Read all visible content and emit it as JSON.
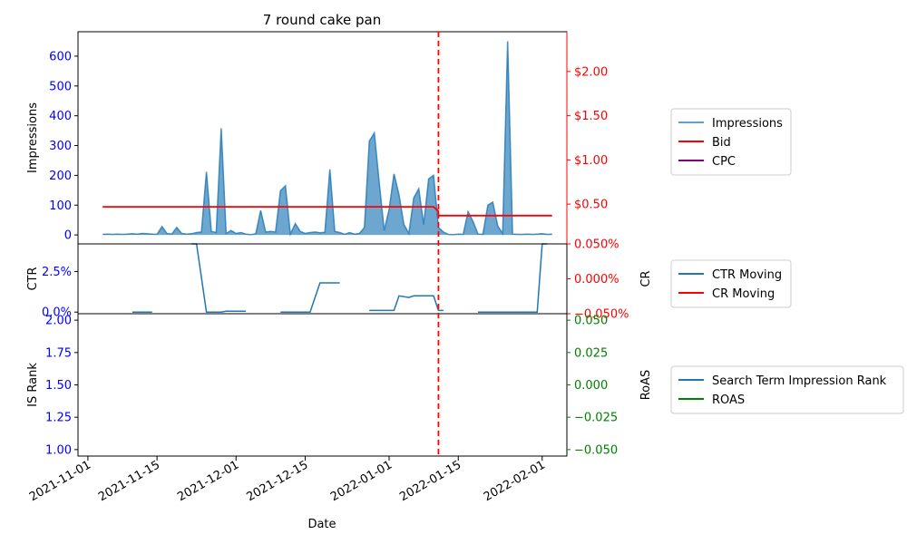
{
  "title": "7 round cake pan",
  "xlabel": "Date",
  "x_tick_labels": [
    "2021-11-01",
    "2021-11-15",
    "2021-12-01",
    "2021-12-15",
    "2022-01-01",
    "2022-01-15",
    "2022-02-01"
  ],
  "vline_date": "2022-01-11",
  "colors": {
    "impressions": "#1f77b4",
    "bid": "#ff0000",
    "cpc": "#800080",
    "roas": "#008000",
    "left_ticks": "#0000ff",
    "vline": "#ff0000"
  },
  "chart_data": [
    {
      "type": "area",
      "panel": "top",
      "ylabel": "Impressions",
      "y2label": "",
      "ylim": [
        -30,
        682
      ],
      "y2lim": [
        0.05,
        2.45
      ],
      "y_ticks": [
        0,
        100,
        200,
        300,
        400,
        500,
        600
      ],
      "y2_ticks": [
        0.5,
        1.0,
        1.5,
        2.0
      ],
      "y2_tick_labels": [
        "$0.50",
        "$1.00",
        "$1.50",
        "$2.00"
      ],
      "legend": [
        "Impressions",
        "Bid",
        "CPC"
      ],
      "series": [
        {
          "name": "Impressions",
          "points": [
            [
              "2021-11-04",
              2
            ],
            [
              "2021-11-05",
              3
            ],
            [
              "2021-11-06",
              2
            ],
            [
              "2021-11-07",
              3
            ],
            [
              "2021-11-08",
              2
            ],
            [
              "2021-11-09",
              3
            ],
            [
              "2021-11-10",
              4
            ],
            [
              "2021-11-11",
              3
            ],
            [
              "2021-11-12",
              5
            ],
            [
              "2021-11-13",
              4
            ],
            [
              "2021-11-14",
              3
            ],
            [
              "2021-11-15",
              2
            ],
            [
              "2021-11-16",
              28
            ],
            [
              "2021-11-17",
              5
            ],
            [
              "2021-11-18",
              3
            ],
            [
              "2021-11-19",
              25
            ],
            [
              "2021-11-20",
              5
            ],
            [
              "2021-11-21",
              3
            ],
            [
              "2021-11-22",
              4
            ],
            [
              "2021-11-23",
              8
            ],
            [
              "2021-11-24",
              10
            ],
            [
              "2021-11-25",
              212
            ],
            [
              "2021-11-26",
              12
            ],
            [
              "2021-11-27",
              8
            ],
            [
              "2021-11-28",
              358
            ],
            [
              "2021-11-29",
              5
            ],
            [
              "2021-11-30",
              15
            ],
            [
              "2021-12-01",
              5
            ],
            [
              "2021-12-02",
              8
            ],
            [
              "2021-12-03",
              3
            ],
            [
              "2021-12-04",
              1
            ],
            [
              "2021-12-05",
              4
            ],
            [
              "2021-12-06",
              82
            ],
            [
              "2021-12-07",
              10
            ],
            [
              "2021-12-08",
              12
            ],
            [
              "2021-12-09",
              10
            ],
            [
              "2021-12-10",
              148
            ],
            [
              "2021-12-11",
              165
            ],
            [
              "2021-12-12",
              3
            ],
            [
              "2021-12-13",
              38
            ],
            [
              "2021-12-14",
              12
            ],
            [
              "2021-12-15",
              5
            ],
            [
              "2021-12-16",
              8
            ],
            [
              "2021-12-17",
              10
            ],
            [
              "2021-12-18",
              7
            ],
            [
              "2021-12-19",
              9
            ],
            [
              "2021-12-20",
              220
            ],
            [
              "2021-12-21",
              12
            ],
            [
              "2021-12-22",
              8
            ],
            [
              "2021-12-23",
              2
            ],
            [
              "2021-12-24",
              8
            ],
            [
              "2021-12-25",
              3
            ],
            [
              "2021-12-26",
              5
            ],
            [
              "2021-12-27",
              25
            ],
            [
              "2021-12-28",
              315
            ],
            [
              "2021-12-29",
              342
            ],
            [
              "2021-12-30",
              175
            ],
            [
              "2021-12-31",
              15
            ],
            [
              "2022-01-01",
              85
            ],
            [
              "2022-01-02",
              205
            ],
            [
              "2022-01-03",
              135
            ],
            [
              "2022-01-04",
              35
            ],
            [
              "2022-01-05",
              5
            ],
            [
              "2022-01-06",
              125
            ],
            [
              "2022-01-07",
              155
            ],
            [
              "2022-01-08",
              35
            ],
            [
              "2022-01-09",
              188
            ],
            [
              "2022-01-10",
              200
            ],
            [
              "2022-01-11",
              25
            ],
            [
              "2022-01-12",
              10
            ],
            [
              "2022-01-13",
              2
            ],
            [
              "2022-01-14",
              1
            ],
            [
              "2022-01-15",
              3
            ],
            [
              "2022-01-16",
              2
            ],
            [
              "2022-01-17",
              78
            ],
            [
              "2022-01-18",
              45
            ],
            [
              "2022-01-19",
              3
            ],
            [
              "2022-01-20",
              2
            ],
            [
              "2022-01-21",
              100
            ],
            [
              "2022-01-22",
              110
            ],
            [
              "2022-01-23",
              30
            ],
            [
              "2022-01-24",
              5
            ],
            [
              "2022-01-25",
              650
            ],
            [
              "2022-01-26",
              3
            ],
            [
              "2022-01-27",
              2
            ],
            [
              "2022-01-28",
              2
            ],
            [
              "2022-01-29",
              3
            ],
            [
              "2022-01-30",
              2
            ],
            [
              "2022-01-31",
              3
            ],
            [
              "2022-02-01",
              4
            ],
            [
              "2022-02-02",
              2
            ],
            [
              "2022-02-03",
              3
            ]
          ]
        },
        {
          "name": "Bid",
          "points": [
            [
              "2021-11-04",
              0.47
            ],
            [
              "2022-01-10",
              0.47
            ],
            [
              "2022-01-11",
              0.42
            ],
            [
              "2022-01-11",
              0.37
            ],
            [
              "2022-02-03",
              0.37
            ]
          ]
        },
        {
          "name": "CPC",
          "points": []
        }
      ]
    },
    {
      "type": "line",
      "panel": "middle",
      "ylabel": "CTR",
      "y2label": "CR",
      "ylim": [
        -0.1,
        4.2
      ],
      "y2lim": [
        -0.05,
        0.05
      ],
      "y_ticks": [
        0.0,
        2.5
      ],
      "y_tick_labels": [
        "0.0%",
        "2.5%"
      ],
      "y2_ticks": [
        -0.05,
        0.0,
        0.05
      ],
      "y2_tick_labels": [
        "−0.050%",
        "0.000%",
        "0.050%"
      ],
      "legend": [
        "CTR Moving",
        "CR Moving"
      ],
      "series": [
        {
          "name": "CTR Moving",
          "segments": [
            [
              [
                "2021-11-22",
                4.2
              ],
              [
                "2021-11-23",
                4.2
              ],
              [
                "2021-11-25",
                0.0
              ],
              [
                "2021-11-28",
                0.0
              ],
              [
                "2021-11-29",
                0.05
              ],
              [
                "2021-12-03",
                0.05
              ]
            ],
            [
              [
                "2021-11-10",
                0.0
              ],
              [
                "2021-11-14",
                0.0
              ]
            ],
            [
              [
                "2021-12-10",
                0.0
              ],
              [
                "2021-12-16",
                0.0
              ],
              [
                "2021-12-18",
                1.8
              ],
              [
                "2021-12-22",
                1.8
              ]
            ],
            [
              [
                "2021-12-28",
                0.1
              ],
              [
                "2022-01-02",
                0.1
              ],
              [
                "2022-01-03",
                1.0
              ],
              [
                "2022-01-05",
                0.9
              ],
              [
                "2022-01-06",
                1.0
              ],
              [
                "2022-01-09",
                1.0
              ],
              [
                "2022-01-10",
                1.0
              ],
              [
                "2022-01-11",
                0.1
              ],
              [
                "2022-01-12",
                0.1
              ]
            ],
            [
              [
                "2022-01-19",
                0.0
              ],
              [
                "2022-01-30",
                0.0
              ],
              [
                "2022-01-31",
                0.0
              ],
              [
                "2022-02-01",
                4.2
              ],
              [
                "2022-02-02",
                4.2
              ]
            ]
          ]
        },
        {
          "name": "CR Moving",
          "segments": []
        }
      ]
    },
    {
      "type": "line",
      "panel": "bottom",
      "ylabel": "IS Rank",
      "y2label": "RoAS",
      "ylim": [
        0.95,
        2.05
      ],
      "y2lim": [
        -0.055,
        0.055
      ],
      "y_ticks": [
        1.0,
        1.25,
        1.5,
        1.75,
        2.0
      ],
      "y_tick_labels": [
        "1.00",
        "1.25",
        "1.50",
        "1.75",
        "2.00"
      ],
      "y2_ticks": [
        -0.05,
        -0.025,
        0.0,
        0.025,
        0.05
      ],
      "y2_tick_labels": [
        "−0.050",
        "−0.025",
        "0.000",
        "0.025",
        "0.050"
      ],
      "legend": [
        "Search Term Impression Rank",
        "ROAS"
      ],
      "series": [
        {
          "name": "Search Term Impression Rank",
          "points": []
        },
        {
          "name": "ROAS",
          "points": []
        }
      ]
    }
  ]
}
